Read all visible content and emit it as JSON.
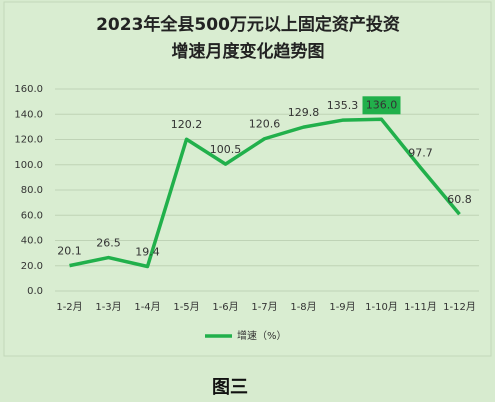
{
  "chart_data": {
    "type": "line",
    "title": [
      "2023年全县500万元以上固定资产投资",
      "增速月度变化趋势图"
    ],
    "categories": [
      "1-2月",
      "1-3月",
      "1-4月",
      "1-5月",
      "1-6月",
      "1-7月",
      "1-8月",
      "1-9月",
      "1-10月",
      "1-11月",
      "1-12月"
    ],
    "series": [
      {
        "name": "增速（%）",
        "color": "#21b04b",
        "values": [
          20.1,
          26.5,
          19.4,
          120.2,
          100.5,
          120.6,
          129.8,
          135.3,
          136.0,
          97.7,
          60.8
        ],
        "value_labels": [
          "20.1",
          "26.5",
          "19.4",
          "120.2",
          "100.5",
          "120.6",
          "129.8",
          "135.3",
          "136.0",
          "97.7",
          "60.8"
        ]
      }
    ],
    "ylim": [
      0,
      160
    ],
    "yticks": [
      {
        "value": 0,
        "label": "0.0"
      },
      {
        "value": 20,
        "label": "20.0"
      },
      {
        "value": 40,
        "label": "40.0"
      },
      {
        "value": 60,
        "label": "60.0"
      },
      {
        "value": 80,
        "label": "80.0"
      },
      {
        "value": 100,
        "label": "100.0"
      },
      {
        "value": 120,
        "label": "120.0"
      },
      {
        "value": 140,
        "label": "140.0"
      },
      {
        "value": 160,
        "label": "160.0"
      }
    ],
    "grid": true,
    "caption": "图三"
  }
}
